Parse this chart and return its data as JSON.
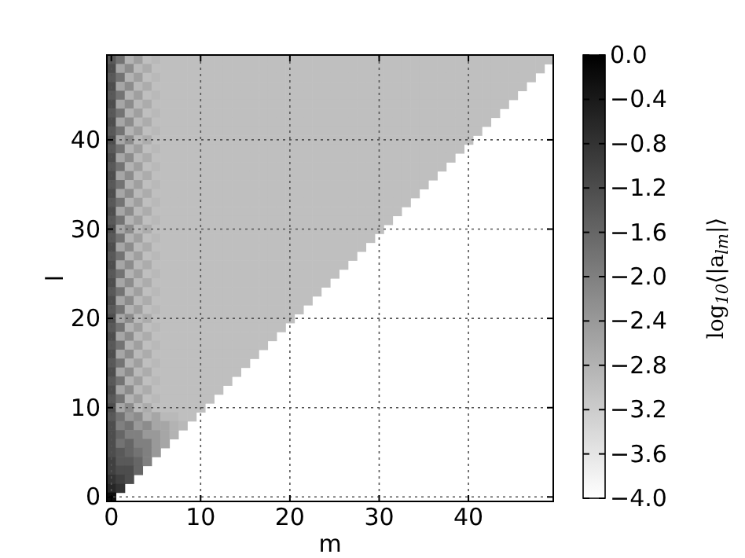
{
  "chart_data": {
    "type": "heatmap",
    "xlabel": "m",
    "ylabel": "l",
    "clabel": "log$_{10}$⟨|a$_{lm}$|⟩",
    "grid": true,
    "categories": [
      "0",
      null,
      null,
      null,
      null,
      null,
      null,
      null,
      null,
      null,
      "10",
      null,
      null,
      null,
      null,
      null,
      null,
      null,
      null,
      null,
      "20",
      null,
      null,
      null,
      null,
      null,
      null,
      null,
      null,
      null,
      "30",
      null,
      null,
      null,
      null,
      null,
      null,
      null,
      null,
      null,
      "40",
      null,
      null,
      null,
      null,
      null,
      null,
      null,
      null,
      null
    ],
    "y_categories": [
      null,
      null,
      null,
      null,
      null,
      null,
      null,
      null,
      null,
      "40",
      null,
      null,
      null,
      null,
      null,
      null,
      null,
      null,
      null,
      "30",
      null,
      null,
      null,
      null,
      null,
      null,
      null,
      null,
      null,
      "20",
      null,
      null,
      null,
      null,
      null,
      null,
      null,
      null,
      null,
      "10",
      null,
      null,
      null,
      null,
      null,
      null,
      null,
      null,
      null,
      "0"
    ],
    "clim": [
      -4,
      0
    ],
    "cticks": [
      {
        "value": -4,
        "label": "−4.0"
      },
      {
        "value": -3.6,
        "label": "−3.6"
      },
      {
        "value": -3.2,
        "label": "−3.2"
      },
      {
        "value": -2.8,
        "label": "−2.8"
      },
      {
        "value": -2.4,
        "label": "−2.4"
      },
      {
        "value": -2,
        "label": "−2.0"
      },
      {
        "value": -1.6,
        "label": "−1.6"
      },
      {
        "value": -1.2,
        "label": "−1.2"
      },
      {
        "value": -0.8,
        "label": "−0.8"
      },
      {
        "value": -0.4,
        "label": "−0.4"
      },
      {
        "value": 0,
        "label": "0.0"
      }
    ],
    "cells": [
      [
        -1.4,
        -1.8,
        -2.8,
        -2.5,
        -3,
        -2.9,
        -3,
        -3,
        -3,
        -3,
        -3,
        -3,
        -3,
        -3,
        -3,
        -3,
        -3,
        -3,
        -3,
        -3,
        -3,
        -3,
        -3,
        -3,
        -3,
        -3,
        -3,
        -3,
        -3,
        -3,
        -3,
        -3,
        -3,
        -3,
        -3,
        -3,
        -3,
        -3,
        -3,
        -3,
        -3,
        -3,
        -3,
        -3,
        -3,
        -3,
        -3,
        -3,
        -3,
        -3
      ],
      [
        -1.2,
        -2.6,
        -2.2,
        -2.9,
        -2.7,
        -3,
        -3,
        -3,
        -3,
        -3,
        -3,
        -3,
        -3,
        -3,
        -3,
        -3,
        -3,
        -3,
        -3,
        -3,
        -3,
        -3,
        -3,
        -3,
        -3,
        -3,
        -3,
        -3,
        -3,
        -3,
        -3,
        -3,
        -3,
        -3,
        -3,
        -3,
        -3,
        -3,
        -3,
        -3,
        -3,
        -3,
        -3,
        -3,
        -3,
        -3,
        -3,
        -3,
        -3,
        null
      ],
      [
        -1.4,
        -1.8,
        -2.8,
        -2.5,
        -3,
        -2.9,
        -3,
        -3,
        -3,
        -3,
        -3,
        -3,
        -3,
        -3,
        -3,
        -3,
        -3,
        -3,
        -3,
        -3,
        -3,
        -3,
        -3,
        -3,
        -3,
        -3,
        -3,
        -3,
        -3,
        -3,
        -3,
        -3,
        -3,
        -3,
        -3,
        -3,
        -3,
        -3,
        -3,
        -3,
        -3,
        -3,
        -3,
        -3,
        -3,
        -3,
        -3,
        -3,
        null,
        null
      ],
      [
        -1.2,
        -2.6,
        -2.2,
        -2.9,
        -2.7,
        -3,
        -3,
        -3,
        -3,
        -3,
        -3,
        -3,
        -3,
        -3,
        -3,
        -3,
        -3,
        -3,
        -3,
        -3,
        -3,
        -3,
        -3,
        -3,
        -3,
        -3,
        -3,
        -3,
        -3,
        -3,
        -3,
        -3,
        -3,
        -3,
        -3,
        -3,
        -3,
        -3,
        -3,
        -3,
        -3,
        -3,
        -3,
        -3,
        -3,
        -3,
        -3,
        null,
        null,
        null
      ],
      [
        -1.4,
        -1.8,
        -2.8,
        -2.5,
        -3,
        -2.9,
        -3,
        -3,
        -3,
        -3,
        -3,
        -3,
        -3,
        -3,
        -3,
        -3,
        -3,
        -3,
        -3,
        -3,
        -3,
        -3,
        -3,
        -3,
        -3,
        -3,
        -3,
        -3,
        -3,
        -3,
        -3,
        -3,
        -3,
        -3,
        -3,
        -3,
        -3,
        -3,
        -3,
        -3,
        -3,
        -3,
        -3,
        -3,
        -3,
        -3,
        null,
        null,
        null,
        null
      ],
      [
        -1.2,
        -2.6,
        -2.2,
        -2.9,
        -2.7,
        -3,
        -3,
        -3,
        -3,
        -3,
        -3,
        -3,
        -3,
        -3,
        -3,
        -3,
        -3,
        -3,
        -3,
        -3,
        -3,
        -3,
        -3,
        -3,
        -3,
        -3,
        -3,
        -3,
        -3,
        -3,
        -3,
        -3,
        -3,
        -3,
        -3,
        -3,
        -3,
        -3,
        -3,
        -3,
        -3,
        -3,
        -3,
        -3,
        -3,
        null,
        null,
        null,
        null,
        null
      ],
      [
        -1.4,
        -1.8,
        -2.8,
        -2.5,
        -3,
        -2.9,
        -3,
        -3,
        -3,
        -3,
        -3,
        -3,
        -3,
        -3,
        -3,
        -3,
        -3,
        -3,
        -3,
        -3,
        -3,
        -3,
        -3,
        -3,
        -3,
        -3,
        -3,
        -3,
        -3,
        -3,
        -3,
        -3,
        -3,
        -3,
        -3,
        -3,
        -3,
        -3,
        -3,
        -3,
        -3,
        -3,
        -3,
        -3,
        null,
        null,
        null,
        null,
        null,
        null
      ],
      [
        -1.2,
        -2.6,
        -2.2,
        -2.9,
        -2.7,
        -3,
        -3,
        -3,
        -3,
        -3,
        -3,
        -3,
        -3,
        -3,
        -3,
        -3,
        -3,
        -3,
        -3,
        -3,
        -3,
        -3,
        -3,
        -3,
        -3,
        -3,
        -3,
        -3,
        -3,
        -3,
        -3,
        -3,
        -3,
        -3,
        -3,
        -3,
        -3,
        -3,
        -3,
        -3,
        -3,
        -3,
        -3,
        null,
        null,
        null,
        null,
        null,
        null,
        null
      ],
      [
        -1.4,
        -1.8,
        -2.8,
        -2.5,
        -3,
        -2.9,
        -3,
        -3,
        -3,
        -3,
        -3,
        -3,
        -3,
        -3,
        -3,
        -3,
        -3,
        -3,
        -3,
        -3,
        -3,
        -3,
        -3,
        -3,
        -3,
        -3,
        -3,
        -3,
        -3,
        -3,
        -3,
        -3,
        -3,
        -3,
        -3,
        -3,
        -3,
        -3,
        -3,
        -3,
        -3,
        -3,
        null,
        null,
        null,
        null,
        null,
        null,
        null,
        null
      ],
      [
        -1.2,
        -2.6,
        -2.2,
        -2.9,
        -2.7,
        -3,
        -3,
        -3,
        -3,
        -3,
        -3,
        -3,
        -3,
        -3,
        -3,
        -3,
        -3,
        -3,
        -3,
        -3,
        -3,
        -3,
        -3,
        -3,
        -3,
        -3,
        -3,
        -3,
        -3,
        -3,
        -3,
        -3,
        -3,
        -3,
        -3,
        -3,
        -3,
        -3,
        -3,
        -3,
        -3,
        null,
        null,
        null,
        null,
        null,
        null,
        null,
        null,
        null
      ],
      [
        -1.4,
        -1.8,
        -2.8,
        -2.5,
        -3,
        -2.9,
        -3,
        -3,
        -3,
        -3,
        -3,
        -3,
        -3,
        -3,
        -3,
        -3,
        -3,
        -3,
        -3,
        -3,
        -3,
        -3,
        -3,
        -3,
        -3,
        -3,
        -3,
        -3,
        -3,
        -3,
        -3,
        -3,
        -3,
        -3,
        -3,
        -3,
        -3,
        -3,
        -3,
        -3,
        null,
        null,
        null,
        null,
        null,
        null,
        null,
        null,
        null,
        null
      ],
      [
        -1.2,
        -2.6,
        -2.2,
        -2.9,
        -2.7,
        -3,
        -3,
        -3,
        -3,
        -3,
        -3,
        -3,
        -3,
        -3,
        -3,
        -3,
        -3,
        -3,
        -3,
        -3,
        -3,
        -3,
        -3,
        -3,
        -3,
        -3,
        -3,
        -3,
        -3,
        -3,
        -3,
        -3,
        -3,
        -3,
        -3,
        -3,
        -3,
        -3,
        -3,
        null,
        null,
        null,
        null,
        null,
        null,
        null,
        null,
        null,
        null,
        null
      ],
      [
        -1.4,
        -1.8,
        -2.8,
        -2.5,
        -3,
        -2.9,
        -3,
        -3,
        -3,
        -3,
        -3,
        -3,
        -3,
        -3,
        -3,
        -3,
        -3,
        -3,
        -3,
        -3,
        -3,
        -3,
        -3,
        -3,
        -3,
        -3,
        -3,
        -3,
        -3,
        -3,
        -3,
        -3,
        -3,
        -3,
        -3,
        -3,
        -3,
        -3,
        null,
        null,
        null,
        null,
        null,
        null,
        null,
        null,
        null,
        null,
        null,
        null
      ],
      [
        -1.2,
        -2.6,
        -2.2,
        -2.9,
        -2.7,
        -3,
        -3,
        -3,
        -3,
        -3,
        -3,
        -3,
        -3,
        -3,
        -3,
        -3,
        -3,
        -3,
        -3,
        -3,
        -3,
        -3,
        -3,
        -3,
        -3,
        -3,
        -3,
        -3,
        -3,
        -3,
        -3,
        -3,
        -3,
        -3,
        -3,
        -3,
        -3,
        null,
        null,
        null,
        null,
        null,
        null,
        null,
        null,
        null,
        null,
        null,
        null,
        null
      ],
      [
        -1.4,
        -1.8,
        -2.8,
        -2.5,
        -3,
        -2.9,
        -3,
        -3,
        -3,
        -3,
        -3,
        -3,
        -3,
        -3,
        -3,
        -3,
        -3,
        -3,
        -3,
        -3,
        -3,
        -3,
        -3,
        -3,
        -3,
        -3,
        -3,
        -3,
        -3,
        -3,
        -3,
        -3,
        -3,
        -3,
        -3,
        -3,
        null,
        null,
        null,
        null,
        null,
        null,
        null,
        null,
        null,
        null,
        null,
        null,
        null,
        null
      ],
      [
        -1.2,
        -2.6,
        -2.2,
        -2.9,
        -2.7,
        -3,
        -3,
        -3,
        -3,
        -3,
        -3,
        -3,
        -3,
        -3,
        -3,
        -3,
        -3,
        -3,
        -3,
        -3,
        -3,
        -3,
        -3,
        -3,
        -3,
        -3,
        -3,
        -3,
        -3,
        -3,
        -3,
        -3,
        -3,
        -3,
        -3,
        null,
        null,
        null,
        null,
        null,
        null,
        null,
        null,
        null,
        null,
        null,
        null,
        null,
        null,
        null
      ],
      [
        -1.4,
        -1.8,
        -2.8,
        -2.5,
        -3,
        -2.9,
        -3,
        -3,
        -3,
        -3,
        -3,
        -3,
        -3,
        -3,
        -3,
        -3,
        -3,
        -3,
        -3,
        -3,
        -3,
        -3,
        -3,
        -3,
        -3,
        -3,
        -3,
        -3,
        -3,
        -3,
        -3,
        -3,
        -3,
        -3,
        null,
        null,
        null,
        null,
        null,
        null,
        null,
        null,
        null,
        null,
        null,
        null,
        null,
        null,
        null,
        null
      ],
      [
        -1.2,
        -2.6,
        -2.2,
        -2.9,
        -2.7,
        -3,
        -3,
        -3,
        -3,
        -3,
        -3,
        -3,
        -3,
        -3,
        -3,
        -3,
        -3,
        -3,
        -3,
        -3,
        -3,
        -3,
        -3,
        -3,
        -3,
        -3,
        -3,
        -3,
        -3,
        -3,
        -3,
        -3,
        -3,
        null,
        null,
        null,
        null,
        null,
        null,
        null,
        null,
        null,
        null,
        null,
        null,
        null,
        null,
        null,
        null,
        null
      ],
      [
        -1.4,
        -1.8,
        -2.8,
        -2.5,
        -3,
        -2.9,
        -3,
        -3,
        -3,
        -3,
        -3,
        -3,
        -3,
        -3,
        -3,
        -3,
        -3,
        -3,
        -3,
        -3,
        -3,
        -3,
        -3,
        -3,
        -3,
        -3,
        -3,
        -3,
        -3,
        -3,
        -3,
        -3,
        null,
        null,
        null,
        null,
        null,
        null,
        null,
        null,
        null,
        null,
        null,
        null,
        null,
        null,
        null,
        null,
        null,
        null
      ],
      [
        -1.2,
        -2.6,
        -2.2,
        -2.9,
        -2.7,
        -3,
        -3,
        -3,
        -3,
        -3,
        -3,
        -3,
        -3,
        -3,
        -3,
        -3,
        -3,
        -3,
        -3,
        -3,
        -3,
        -3,
        -3,
        -3,
        -3,
        -3,
        -3,
        -3,
        -3,
        -3,
        -3,
        null,
        null,
        null,
        null,
        null,
        null,
        null,
        null,
        null,
        null,
        null,
        null,
        null,
        null,
        null,
        null,
        null,
        null,
        null
      ],
      [
        -1.4,
        -1.8,
        -2.8,
        -2.5,
        -3,
        -2.9,
        -3,
        -3,
        -3,
        -3,
        -3,
        -3,
        -3,
        -3,
        -3,
        -3,
        -3,
        -3,
        -3,
        -3,
        -3,
        -3,
        -3,
        -3,
        -3,
        -3,
        -3,
        -3,
        -3,
        -3,
        null,
        null,
        null,
        null,
        null,
        null,
        null,
        null,
        null,
        null,
        null,
        null,
        null,
        null,
        null,
        null,
        null,
        null,
        null,
        null
      ],
      [
        -1.2,
        -2.6,
        -2.2,
        -2.9,
        -2.7,
        -3,
        -3,
        -3,
        -3,
        -3,
        -3,
        -3,
        -3,
        -3,
        -3,
        -3,
        -3,
        -3,
        -3,
        -3,
        -3,
        -3,
        -3,
        -3,
        -3,
        -3,
        -3,
        -3,
        -3,
        null,
        null,
        null,
        null,
        null,
        null,
        null,
        null,
        null,
        null,
        null,
        null,
        null,
        null,
        null,
        null,
        null,
        null,
        null,
        null,
        null
      ],
      [
        -1.4,
        -1.8,
        -2.8,
        -2.5,
        -3,
        -2.9,
        -3,
        -3,
        -3,
        -3,
        -3,
        -3,
        -3,
        -3,
        -3,
        -3,
        -3,
        -3,
        -3,
        -3,
        -3,
        -3,
        -3,
        -3,
        -3,
        -3,
        -3,
        -3,
        null,
        null,
        null,
        null,
        null,
        null,
        null,
        null,
        null,
        null,
        null,
        null,
        null,
        null,
        null,
        null,
        null,
        null,
        null,
        null,
        null,
        null
      ],
      [
        -1.2,
        -2.6,
        -2.2,
        -2.9,
        -2.7,
        -3,
        -3,
        -3,
        -3,
        -3,
        -3,
        -3,
        -3,
        -3,
        -3,
        -3,
        -3,
        -3,
        -3,
        -3,
        -3,
        -3,
        -3,
        -3,
        -3,
        -3,
        -3,
        null,
        null,
        null,
        null,
        null,
        null,
        null,
        null,
        null,
        null,
        null,
        null,
        null,
        null,
        null,
        null,
        null,
        null,
        null,
        null,
        null,
        null,
        null
      ],
      [
        -1.4,
        -1.8,
        -2.8,
        -2.5,
        -3,
        -2.9,
        -3,
        -3,
        -3,
        -3,
        -3,
        -3,
        -3,
        -3,
        -3,
        -3,
        -3,
        -3,
        -3,
        -3,
        -3,
        -3,
        -3,
        -3,
        -3,
        -3,
        null,
        null,
        null,
        null,
        null,
        null,
        null,
        null,
        null,
        null,
        null,
        null,
        null,
        null,
        null,
        null,
        null,
        null,
        null,
        null,
        null,
        null,
        null,
        null
      ],
      [
        -1.2,
        -2.6,
        -2.2,
        -2.9,
        -2.7,
        -3,
        -3,
        -3,
        -3,
        -3,
        -3,
        -3,
        -3,
        -3,
        -3,
        -3,
        -3,
        -3,
        -3,
        -3,
        -3,
        -3,
        -3,
        -3,
        -3,
        null,
        null,
        null,
        null,
        null,
        null,
        null,
        null,
        null,
        null,
        null,
        null,
        null,
        null,
        null,
        null,
        null,
        null,
        null,
        null,
        null,
        null,
        null,
        null,
        null
      ],
      [
        -1.4,
        -1.8,
        -2.8,
        -2.5,
        -3,
        -2.9,
        -3,
        -3,
        -3,
        -3,
        -3,
        -3,
        -3,
        -3,
        -3,
        -3,
        -3,
        -3,
        -3,
        -3,
        -3,
        -3,
        -3,
        -3,
        null,
        null,
        null,
        null,
        null,
        null,
        null,
        null,
        null,
        null,
        null,
        null,
        null,
        null,
        null,
        null,
        null,
        null,
        null,
        null,
        null,
        null,
        null,
        null,
        null,
        null
      ],
      [
        -1.2,
        -2.6,
        -2.2,
        -2.9,
        -2.7,
        -3,
        -3,
        -3,
        -3,
        -3,
        -3,
        -3,
        -3,
        -3,
        -3,
        -3,
        -3,
        -3,
        -3,
        -3,
        -3,
        -3,
        -3,
        null,
        null,
        null,
        null,
        null,
        null,
        null,
        null,
        null,
        null,
        null,
        null,
        null,
        null,
        null,
        null,
        null,
        null,
        null,
        null,
        null,
        null,
        null,
        null,
        null,
        null,
        null
      ],
      [
        -1.4,
        -1.8,
        -2.8,
        -2.5,
        -3,
        -2.9,
        -3,
        -3,
        -3,
        -3,
        -3,
        -3,
        -3,
        -3,
        -3,
        -3,
        -3,
        -3,
        -3,
        -3,
        -3,
        -3,
        null,
        null,
        null,
        null,
        null,
        null,
        null,
        null,
        null,
        null,
        null,
        null,
        null,
        null,
        null,
        null,
        null,
        null,
        null,
        null,
        null,
        null,
        null,
        null,
        null,
        null,
        null,
        null
      ],
      [
        -1.2,
        -2.6,
        -2.2,
        -2.9,
        -2.7,
        -3,
        -3,
        -3,
        -3,
        -3,
        -3,
        -3,
        -3,
        -3,
        -3,
        -3,
        -3,
        -3,
        -3,
        -3,
        -3,
        null,
        null,
        null,
        null,
        null,
        null,
        null,
        null,
        null,
        null,
        null,
        null,
        null,
        null,
        null,
        null,
        null,
        null,
        null,
        null,
        null,
        null,
        null,
        null,
        null,
        null,
        null,
        null,
        null
      ],
      [
        -1.4,
        -1.8,
        -2.8,
        -2.5,
        -3,
        -2.9,
        -3,
        -3,
        -3,
        -3,
        -3,
        -3,
        -3,
        -3,
        -3,
        -3,
        -3,
        -3,
        -3,
        -3,
        null,
        null,
        null,
        null,
        null,
        null,
        null,
        null,
        null,
        null,
        null,
        null,
        null,
        null,
        null,
        null,
        null,
        null,
        null,
        null,
        null,
        null,
        null,
        null,
        null,
        null,
        null,
        null,
        null,
        null
      ],
      [
        -1.2,
        -2.6,
        -2.2,
        -2.9,
        -2.7,
        -3,
        -3,
        -3,
        -3,
        -3,
        -3,
        -3,
        -3,
        -3,
        -3,
        -3,
        -3,
        -3,
        -3,
        null,
        null,
        null,
        null,
        null,
        null,
        null,
        null,
        null,
        null,
        null,
        null,
        null,
        null,
        null,
        null,
        null,
        null,
        null,
        null,
        null,
        null,
        null,
        null,
        null,
        null,
        null,
        null,
        null,
        null,
        null
      ],
      [
        -1.4,
        -1.8,
        -2.8,
        -2.5,
        -3,
        -2.9,
        -3,
        -3,
        -3,
        -3,
        -3,
        -3,
        -3,
        -3,
        -3,
        -3,
        -3,
        -3,
        null,
        null,
        null,
        null,
        null,
        null,
        null,
        null,
        null,
        null,
        null,
        null,
        null,
        null,
        null,
        null,
        null,
        null,
        null,
        null,
        null,
        null,
        null,
        null,
        null,
        null,
        null,
        null,
        null,
        null,
        null,
        null
      ],
      [
        -1.2,
        -2.6,
        -2.2,
        -2.9,
        -2.7,
        -3,
        -3,
        -3,
        -3,
        -3,
        -3,
        -3,
        -3,
        -3,
        -3,
        -3,
        -3,
        null,
        null,
        null,
        null,
        null,
        null,
        null,
        null,
        null,
        null,
        null,
        null,
        null,
        null,
        null,
        null,
        null,
        null,
        null,
        null,
        null,
        null,
        null,
        null,
        null,
        null,
        null,
        null,
        null,
        null,
        null,
        null,
        null
      ],
      [
        -1.4,
        -1.8,
        -2.8,
        -2.5,
        -3,
        -2.9,
        -3,
        -3,
        -3,
        -3,
        -3,
        -3,
        -3,
        -3,
        -3,
        -3,
        null,
        null,
        null,
        null,
        null,
        null,
        null,
        null,
        null,
        null,
        null,
        null,
        null,
        null,
        null,
        null,
        null,
        null,
        null,
        null,
        null,
        null,
        null,
        null,
        null,
        null,
        null,
        null,
        null,
        null,
        null,
        null,
        null,
        null
      ],
      [
        -1.2,
        -2.6,
        -2.2,
        -2.9,
        -2.7,
        -3,
        -3,
        -3,
        -3,
        -3,
        -3,
        -3,
        -3,
        -3,
        -3,
        null,
        null,
        null,
        null,
        null,
        null,
        null,
        null,
        null,
        null,
        null,
        null,
        null,
        null,
        null,
        null,
        null,
        null,
        null,
        null,
        null,
        null,
        null,
        null,
        null,
        null,
        null,
        null,
        null,
        null,
        null,
        null,
        null,
        null,
        null
      ],
      [
        -1.4,
        -1.8,
        -2.8,
        -2.5,
        -3,
        -2.9,
        -3,
        -3,
        -3,
        -3,
        -3,
        -3,
        -3,
        -3,
        null,
        null,
        null,
        null,
        null,
        null,
        null,
        null,
        null,
        null,
        null,
        null,
        null,
        null,
        null,
        null,
        null,
        null,
        null,
        null,
        null,
        null,
        null,
        null,
        null,
        null,
        null,
        null,
        null,
        null,
        null,
        null,
        null,
        null,
        null,
        null
      ],
      [
        -1.2,
        -2.6,
        -2.2,
        -2.9,
        -2.7,
        -3,
        -3,
        -3,
        -3,
        -3,
        -3,
        -3,
        -3,
        null,
        null,
        null,
        null,
        null,
        null,
        null,
        null,
        null,
        null,
        null,
        null,
        null,
        null,
        null,
        null,
        null,
        null,
        null,
        null,
        null,
        null,
        null,
        null,
        null,
        null,
        null,
        null,
        null,
        null,
        null,
        null,
        null,
        null,
        null,
        null,
        null
      ],
      [
        -1.4,
        -1.8,
        -2.8,
        -2.5,
        -3,
        -2.9,
        -3,
        -3,
        -3,
        -3,
        -3,
        -3,
        null,
        null,
        null,
        null,
        null,
        null,
        null,
        null,
        null,
        null,
        null,
        null,
        null,
        null,
        null,
        null,
        null,
        null,
        null,
        null,
        null,
        null,
        null,
        null,
        null,
        null,
        null,
        null,
        null,
        null,
        null,
        null,
        null,
        null,
        null,
        null,
        null,
        null
      ],
      [
        -1.2,
        -2.6,
        -2.2,
        -2.9,
        -2.7,
        -3,
        -3,
        -3,
        -3,
        -3,
        -3,
        null,
        null,
        null,
        null,
        null,
        null,
        null,
        null,
        null,
        null,
        null,
        null,
        null,
        null,
        null,
        null,
        null,
        null,
        null,
        null,
        null,
        null,
        null,
        null,
        null,
        null,
        null,
        null,
        null,
        null,
        null,
        null,
        null,
        null,
        null,
        null,
        null,
        null,
        null
      ],
      [
        -1.4,
        -1.8,
        -2.4,
        -2.2,
        -2.8,
        -2.6,
        -2.9,
        -2.9,
        -3,
        -3,
        null,
        null,
        null,
        null,
        null,
        null,
        null,
        null,
        null,
        null,
        null,
        null,
        null,
        null,
        null,
        null,
        null,
        null,
        null,
        null,
        null,
        null,
        null,
        null,
        null,
        null,
        null,
        null,
        null,
        null,
        null,
        null,
        null,
        null,
        null,
        null,
        null,
        null,
        null,
        null
      ],
      [
        -1.2,
        -2,
        -1.8,
        -2.4,
        -2.2,
        -2.6,
        -2.6,
        -2.8,
        -2.9,
        null,
        null,
        null,
        null,
        null,
        null,
        null,
        null,
        null,
        null,
        null,
        null,
        null,
        null,
        null,
        null,
        null,
        null,
        null,
        null,
        null,
        null,
        null,
        null,
        null,
        null,
        null,
        null,
        null,
        null,
        null,
        null,
        null,
        null,
        null,
        null,
        null,
        null,
        null,
        null,
        null
      ],
      [
        -1.2,
        -1.6,
        -2,
        -2,
        -2.4,
        -2.4,
        -2.6,
        -2.8,
        null,
        null,
        null,
        null,
        null,
        null,
        null,
        null,
        null,
        null,
        null,
        null,
        null,
        null,
        null,
        null,
        null,
        null,
        null,
        null,
        null,
        null,
        null,
        null,
        null,
        null,
        null,
        null,
        null,
        null,
        null,
        null,
        null,
        null,
        null,
        null,
        null,
        null,
        null,
        null,
        null,
        null
      ],
      [
        -1.2,
        -1.8,
        -1.6,
        -2,
        -2,
        -2.4,
        -2.6,
        null,
        null,
        null,
        null,
        null,
        null,
        null,
        null,
        null,
        null,
        null,
        null,
        null,
        null,
        null,
        null,
        null,
        null,
        null,
        null,
        null,
        null,
        null,
        null,
        null,
        null,
        null,
        null,
        null,
        null,
        null,
        null,
        null,
        null,
        null,
        null,
        null,
        null,
        null,
        null,
        null,
        null,
        null
      ],
      [
        -1.2,
        -1.4,
        -1.6,
        -1.8,
        -2,
        -2.4,
        null,
        null,
        null,
        null,
        null,
        null,
        null,
        null,
        null,
        null,
        null,
        null,
        null,
        null,
        null,
        null,
        null,
        null,
        null,
        null,
        null,
        null,
        null,
        null,
        null,
        null,
        null,
        null,
        null,
        null,
        null,
        null,
        null,
        null,
        null,
        null,
        null,
        null,
        null,
        null,
        null,
        null,
        null,
        null
      ],
      [
        -1,
        -1.4,
        -1.4,
        -1.6,
        -2,
        null,
        null,
        null,
        null,
        null,
        null,
        null,
        null,
        null,
        null,
        null,
        null,
        null,
        null,
        null,
        null,
        null,
        null,
        null,
        null,
        null,
        null,
        null,
        null,
        null,
        null,
        null,
        null,
        null,
        null,
        null,
        null,
        null,
        null,
        null,
        null,
        null,
        null,
        null,
        null,
        null,
        null,
        null,
        null,
        null
      ],
      [
        -1,
        -1.2,
        -1.2,
        -1.6,
        null,
        null,
        null,
        null,
        null,
        null,
        null,
        null,
        null,
        null,
        null,
        null,
        null,
        null,
        null,
        null,
        null,
        null,
        null,
        null,
        null,
        null,
        null,
        null,
        null,
        null,
        null,
        null,
        null,
        null,
        null,
        null,
        null,
        null,
        null,
        null,
        null,
        null,
        null,
        null,
        null,
        null,
        null,
        null,
        null,
        null
      ],
      [
        -0.8,
        -1,
        -1.2,
        null,
        null,
        null,
        null,
        null,
        null,
        null,
        null,
        null,
        null,
        null,
        null,
        null,
        null,
        null,
        null,
        null,
        null,
        null,
        null,
        null,
        null,
        null,
        null,
        null,
        null,
        null,
        null,
        null,
        null,
        null,
        null,
        null,
        null,
        null,
        null,
        null,
        null,
        null,
        null,
        null,
        null,
        null,
        null,
        null,
        null,
        null
      ],
      [
        -0.6,
        -0.8,
        null,
        null,
        null,
        null,
        null,
        null,
        null,
        null,
        null,
        null,
        null,
        null,
        null,
        null,
        null,
        null,
        null,
        null,
        null,
        null,
        null,
        null,
        null,
        null,
        null,
        null,
        null,
        null,
        null,
        null,
        null,
        null,
        null,
        null,
        null,
        null,
        null,
        null,
        null,
        null,
        null,
        null,
        null,
        null,
        null,
        null,
        null,
        null
      ],
      [
        -0.2,
        null,
        null,
        null,
        null,
        null,
        null,
        null,
        null,
        null,
        null,
        null,
        null,
        null,
        null,
        null,
        null,
        null,
        null,
        null,
        null,
        null,
        null,
        null,
        null,
        null,
        null,
        null,
        null,
        null,
        null,
        null,
        null,
        null,
        null,
        null,
        null,
        null,
        null,
        null,
        null,
        null,
        null,
        null,
        null,
        null,
        null,
        null,
        null,
        null
      ]
    ]
  }
}
